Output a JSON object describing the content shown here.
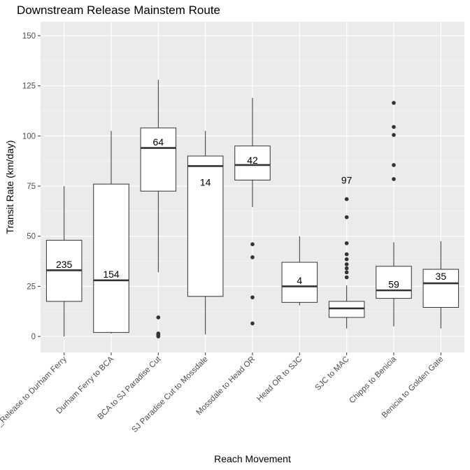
{
  "chart_data": {
    "type": "boxplot",
    "title": "Downstream Release Mainstem Route",
    "xlabel": "Reach Movement",
    "ylabel": "Transit Rate (km/day)",
    "ylim": [
      -8,
      157
    ],
    "yticks": [
      0,
      25,
      50,
      75,
      100,
      125,
      150
    ],
    "grid": true,
    "categories": [
      "Release to Durham Ferry",
      "Durham Ferry to BCA",
      "BCA to SJ Paradise Cut",
      "SJ Paradise Cut to Mossdale",
      "Mossdale to Head OR",
      "Head OR to SJC",
      "SJC to MAC",
      "Chipps to Benicia",
      "Benicia to Golden Gate"
    ],
    "tick_labels": [
      "_Release to Durham Ferry",
      "Durham Ferry to BCA",
      "BCA to SJ Paradise Cut",
      "SJ Paradise Cut to Mossdale",
      "Mossdale to Head OR",
      "Head OR to SJC",
      "SJC to MAC",
      "Chipps to Benicia",
      "Benicia to Golden Gate"
    ],
    "boxes": [
      {
        "whisker_low": 0,
        "q1": 17.5,
        "median": 33,
        "q3": 48,
        "whisker_high": 75,
        "outliers": [],
        "n_label": "235",
        "n_label_y": 36
      },
      {
        "whisker_low": 1.5,
        "q1": 2,
        "median": 28,
        "q3": 76,
        "whisker_high": 102.5,
        "outliers": [],
        "n_label": "154",
        "n_label_y": 31
      },
      {
        "whisker_low": 32,
        "q1": 72.5,
        "median": 94,
        "q3": 104,
        "whisker_high": 128,
        "outliers": [
          9.5,
          1.5,
          1,
          0.5,
          0
        ],
        "n_label": "64",
        "n_label_y": 97
      },
      {
        "whisker_low": 1,
        "q1": 20,
        "median": 85,
        "q3": 90,
        "whisker_high": 102.5,
        "outliers": [],
        "n_label": "14",
        "n_label_y": 77
      },
      {
        "whisker_low": 64.5,
        "q1": 78,
        "median": 85.5,
        "q3": 95,
        "whisker_high": 119,
        "outliers": [
          46,
          39.5,
          19.5,
          6.5
        ],
        "n_label": "42",
        "n_label_y": 88
      },
      {
        "whisker_low": 15.5,
        "q1": 17,
        "median": 25,
        "q3": 37,
        "whisker_high": 50,
        "outliers": [],
        "n_label": "4",
        "n_label_y": 28
      },
      {
        "whisker_low": 4,
        "q1": 9.5,
        "median": 14,
        "q3": 17.5,
        "whisker_high": 25.5,
        "outliers": [
          68.5,
          59.5,
          46.5,
          41,
          38.5,
          36,
          34,
          32,
          29.5
        ],
        "n_label": "97",
        "n_label_y": 78
      },
      {
        "whisker_low": 5,
        "q1": 19,
        "median": 23,
        "q3": 35,
        "whisker_high": 47,
        "outliers": [
          116.5,
          104.5,
          100.5,
          85.5,
          78.5
        ],
        "n_label": "59",
        "n_label_y": 26
      },
      {
        "whisker_low": 4,
        "q1": 14.5,
        "median": 26.5,
        "q3": 33.5,
        "whisker_high": 47.5,
        "outliers": [],
        "n_label": "35",
        "n_label_y": 30
      }
    ]
  }
}
